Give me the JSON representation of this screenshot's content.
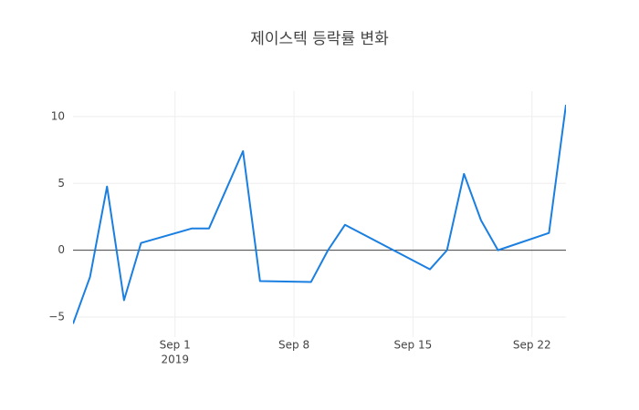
{
  "chart_data": {
    "type": "line",
    "title": "제이스텍 등락률 변화",
    "x": [
      "2019-08-26",
      "2019-08-27",
      "2019-08-28",
      "2019-08-29",
      "2019-08-30",
      "2019-09-02",
      "2019-09-03",
      "2019-09-05",
      "2019-09-06",
      "2019-09-09",
      "2019-09-10",
      "2019-09-11",
      "2019-09-16",
      "2019-09-17",
      "2019-09-18",
      "2019-09-19",
      "2019-09-20",
      "2019-09-23",
      "2019-09-24"
    ],
    "series": [
      {
        "color": "#1a7fe0",
        "values": [
          -5.5,
          -2.0,
          4.76,
          -3.74,
          0.54,
          1.63,
          1.63,
          7.41,
          -2.31,
          -2.38,
          0.0,
          1.9,
          -1.43,
          0.0,
          5.71,
          2.24,
          0.0,
          1.29,
          10.88
        ]
      }
    ],
    "xlim": [
      "2019-08-26",
      "2019-09-24"
    ],
    "xticks": [
      {
        "value": "2019-09-01",
        "label": "Sep 1"
      },
      {
        "value": "2019-09-08",
        "label": "Sep 8"
      },
      {
        "value": "2019-09-15",
        "label": "Sep 15"
      },
      {
        "value": "2019-09-22",
        "label": "Sep 22"
      }
    ],
    "x_year_label": "2019",
    "ylim": [
      -6.5,
      11.9
    ],
    "yticks": [
      {
        "value": -5,
        "label": "−5"
      },
      0,
      5,
      10
    ],
    "grid": true,
    "zeroline": true
  }
}
